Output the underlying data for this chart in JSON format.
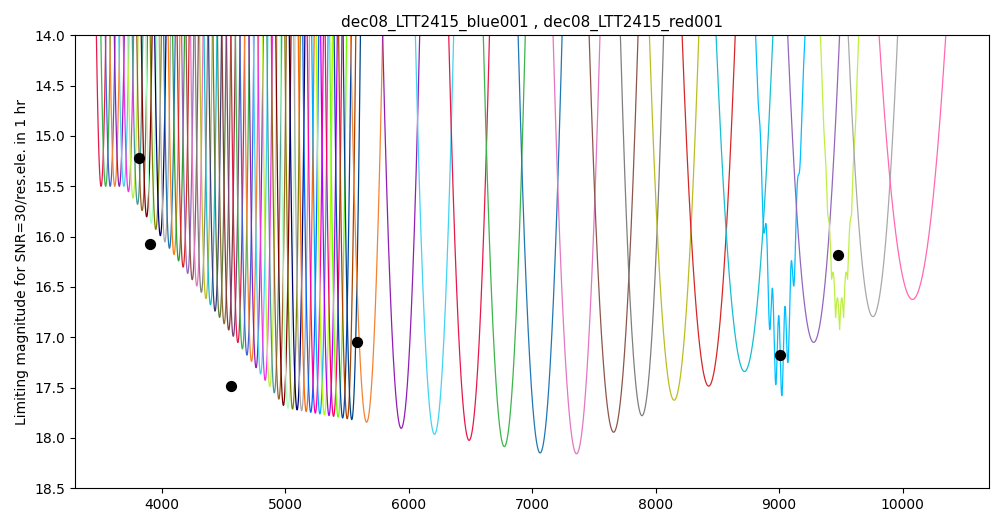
{
  "title": "dec08_LTT2415_blue001 , dec08_LTT2415_red001",
  "ylabel": "Limiting magnitude for SNR=30/res.ele. in 1 hr",
  "xlabel": "",
  "xlim": [
    3300,
    10700
  ],
  "ylim": [
    18.5,
    14.0
  ],
  "title_fontsize": 11,
  "label_fontsize": 10,
  "background_color": "#ffffff",
  "dot_color": "#000000",
  "dot_size": 50,
  "xticks": [
    4000,
    5000,
    6000,
    7000,
    8000,
    9000,
    10000
  ],
  "dot_points": [
    [
      3820,
      15.22
    ],
    [
      3910,
      16.07
    ],
    [
      4560,
      17.48
    ],
    [
      5580,
      17.05
    ],
    [
      9010,
      17.18
    ],
    [
      9480,
      16.18
    ]
  ]
}
